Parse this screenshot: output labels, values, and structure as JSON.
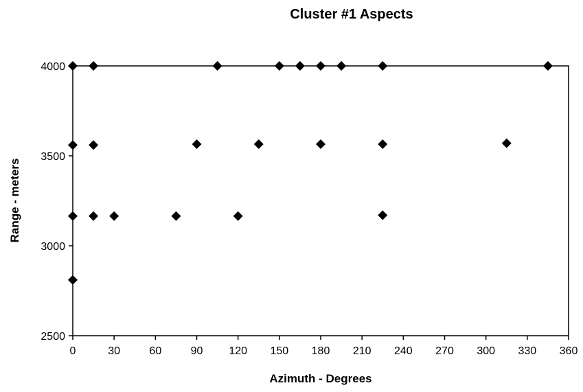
{
  "chart_data": {
    "type": "scatter",
    "title": "Cluster #1 Aspects",
    "xlabel": "Azimuth - Degrees",
    "ylabel": "Range - meters",
    "xlim": [
      0,
      360
    ],
    "ylim": [
      2500,
      4000
    ],
    "xticks": [
      0,
      30,
      60,
      90,
      120,
      150,
      180,
      210,
      240,
      270,
      300,
      330,
      360
    ],
    "yticks": [
      2500,
      3000,
      3500,
      4000
    ],
    "grid": false,
    "legend": "none",
    "marker": "diamond",
    "marker_color": "#000000",
    "points": [
      {
        "x": 0,
        "y": 4000
      },
      {
        "x": 15,
        "y": 4000
      },
      {
        "x": 105,
        "y": 4000
      },
      {
        "x": 150,
        "y": 4000
      },
      {
        "x": 165,
        "y": 4000
      },
      {
        "x": 180,
        "y": 4000
      },
      {
        "x": 195,
        "y": 4000
      },
      {
        "x": 225,
        "y": 4000
      },
      {
        "x": 345,
        "y": 4000
      },
      {
        "x": 0,
        "y": 3560
      },
      {
        "x": 15,
        "y": 3560
      },
      {
        "x": 90,
        "y": 3565
      },
      {
        "x": 135,
        "y": 3565
      },
      {
        "x": 180,
        "y": 3565
      },
      {
        "x": 225,
        "y": 3565
      },
      {
        "x": 315,
        "y": 3570
      },
      {
        "x": 0,
        "y": 3165
      },
      {
        "x": 15,
        "y": 3165
      },
      {
        "x": 30,
        "y": 3165
      },
      {
        "x": 75,
        "y": 3165
      },
      {
        "x": 120,
        "y": 3165
      },
      {
        "x": 225,
        "y": 3170
      },
      {
        "x": 0,
        "y": 2810
      }
    ]
  }
}
